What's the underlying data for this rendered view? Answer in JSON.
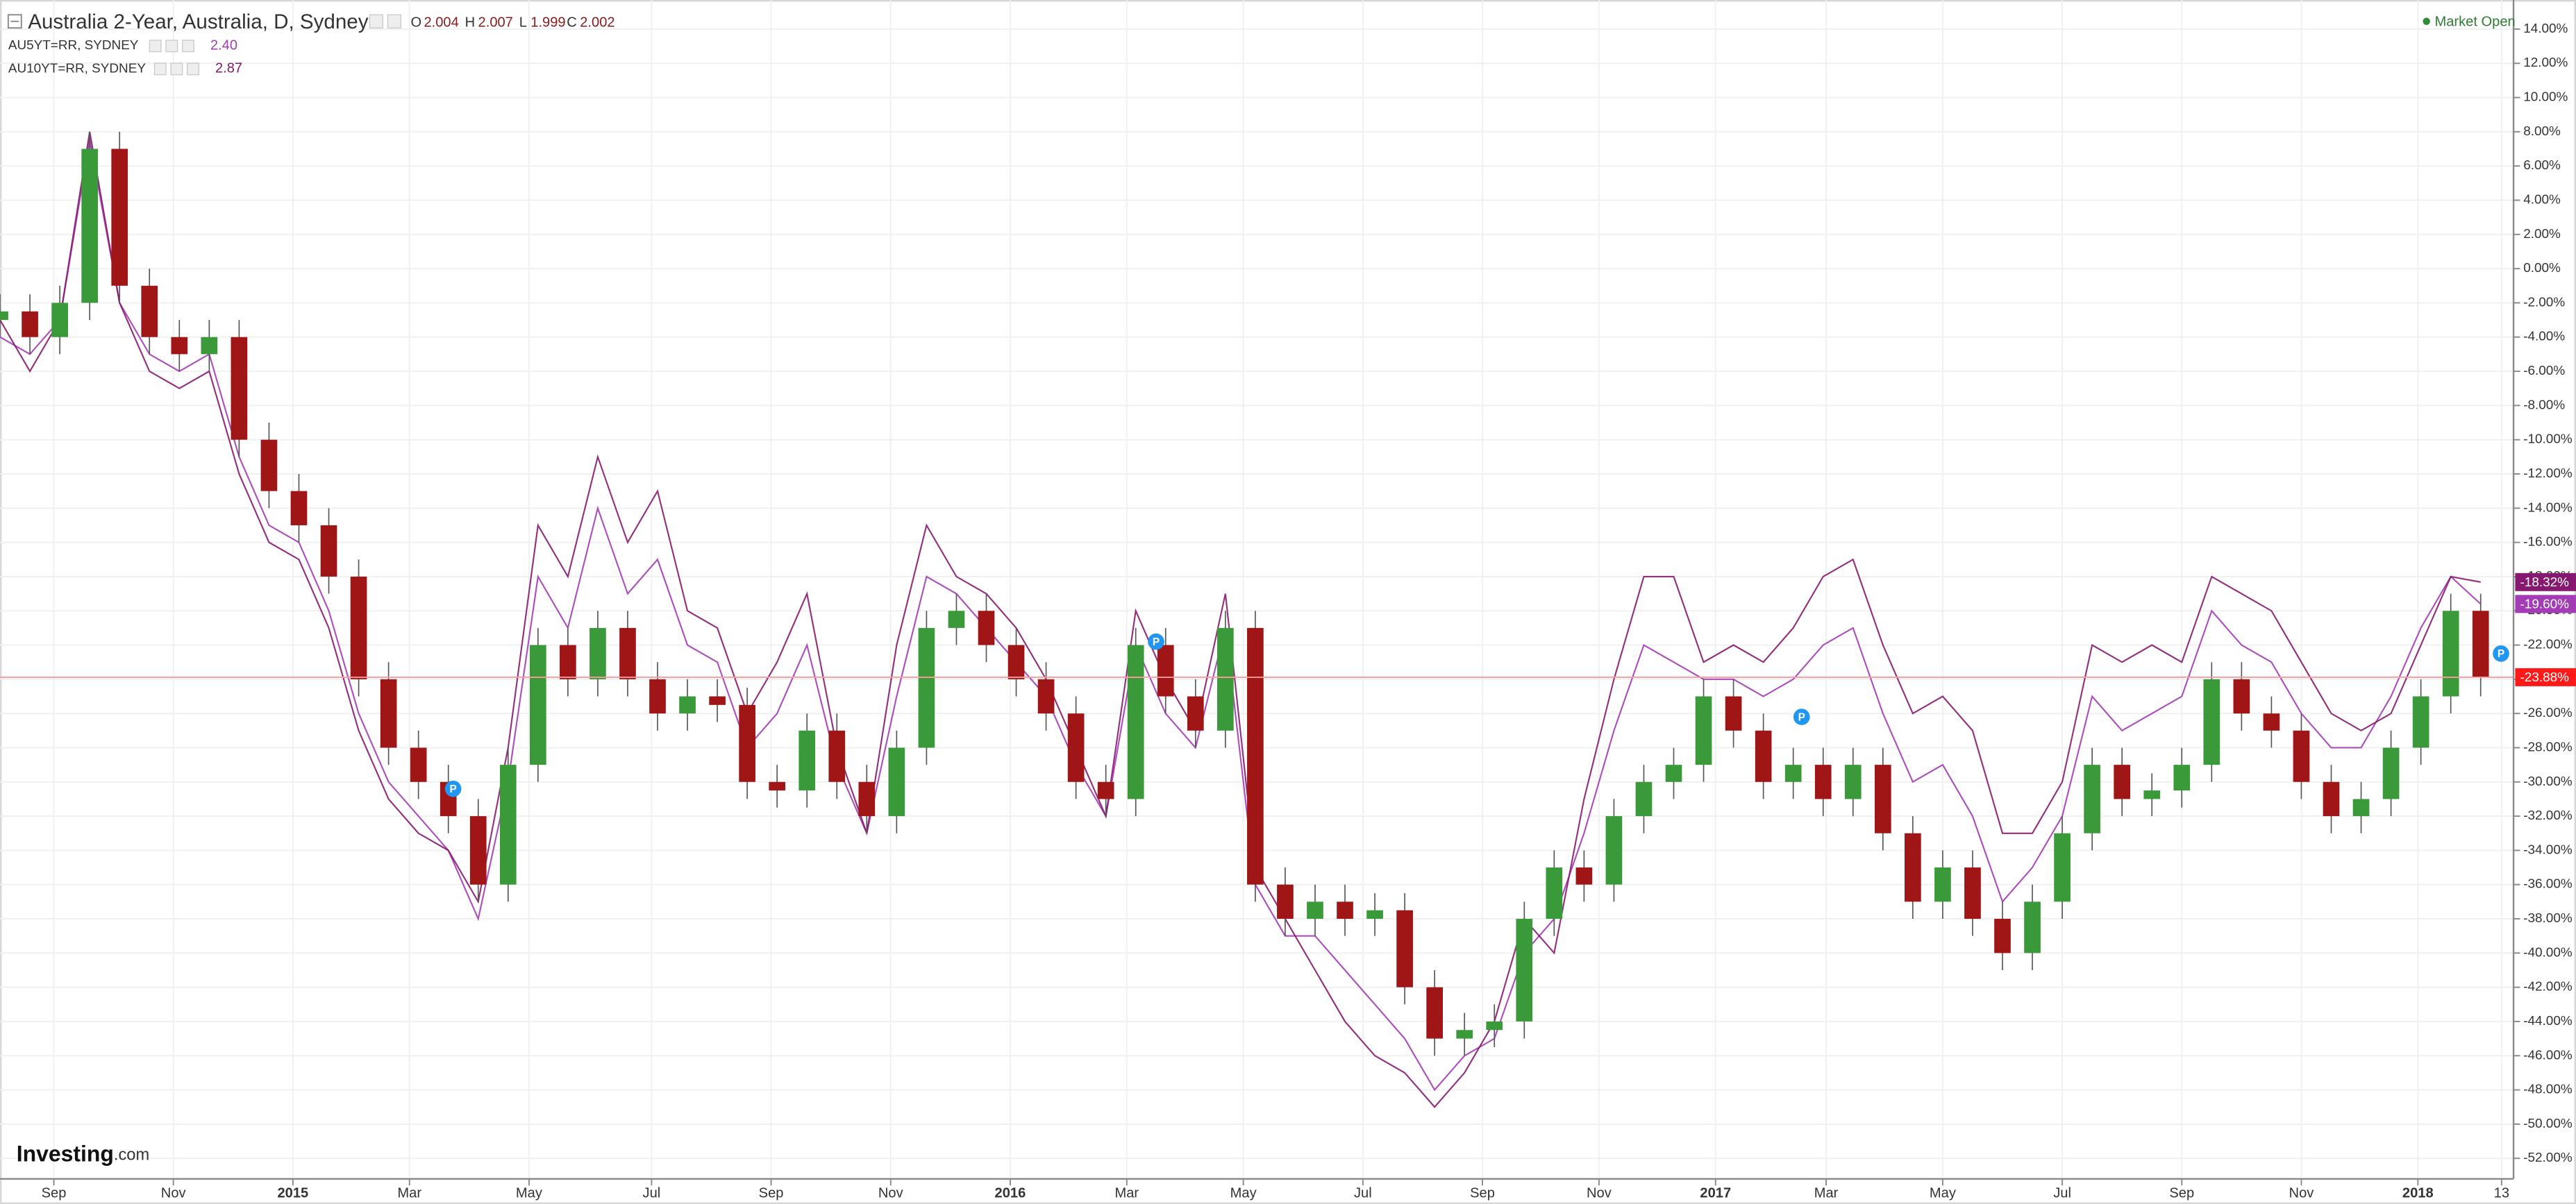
{
  "chart_data": {
    "type": "candlestick",
    "title": "Australia 2-Year, Australia, D, Sydney",
    "ohlc_header": [
      [
        "O",
        "2.004"
      ],
      [
        "H",
        "2.007"
      ],
      [
        "L",
        "1.999"
      ],
      [
        "C",
        "2.002"
      ]
    ],
    "status": "Market Open",
    "logo": {
      "name": "Investing",
      "suffix": ".com"
    },
    "up_color": "#3a9a3a",
    "down_color": "#a01616",
    "last_line_color": "#ff9a9a",
    "last_label": "-23.88%",
    "last_label_color": "#ff1a1a",
    "grid": true,
    "xlim": [
      0,
      42.05
    ],
    "ylim": [
      -53.2,
      15.7
    ],
    "xticks": [
      {
        "value": 0.9,
        "label": "Sep"
      },
      {
        "value": 2.9,
        "label": "Nov"
      },
      {
        "value": 4.9,
        "label": "2015"
      },
      {
        "value": 6.85,
        "label": "Mar"
      },
      {
        "value": 8.85,
        "label": "May"
      },
      {
        "value": 10.9,
        "label": "Jul"
      },
      {
        "value": 12.9,
        "label": "Sep"
      },
      {
        "value": 14.9,
        "label": "Nov"
      },
      {
        "value": 16.9,
        "label": "2016"
      },
      {
        "value": 18.85,
        "label": "Mar"
      },
      {
        "value": 20.8,
        "label": "May"
      },
      {
        "value": 22.8,
        "label": "Jul"
      },
      {
        "value": 24.8,
        "label": "Sep"
      },
      {
        "value": 26.75,
        "label": "Nov"
      },
      {
        "value": 28.7,
        "label": "2017"
      },
      {
        "value": 30.55,
        "label": "Mar"
      },
      {
        "value": 32.5,
        "label": "May"
      },
      {
        "value": 34.5,
        "label": "Jul"
      },
      {
        "value": 36.5,
        "label": "Sep"
      },
      {
        "value": 38.5,
        "label": "Nov"
      },
      {
        "value": 40.45,
        "label": "2018"
      },
      {
        "value": 41.85,
        "label": "13"
      }
    ],
    "yticks": [
      {
        "value": 14,
        "label": "14.00%"
      },
      {
        "value": 12,
        "label": "12.00%"
      },
      {
        "value": 10,
        "label": "10.00%"
      },
      {
        "value": 8,
        "label": "8.00%"
      },
      {
        "value": 6,
        "label": "6.00%"
      },
      {
        "value": 4,
        "label": "4.00%"
      },
      {
        "value": 2,
        "label": "2.00%"
      },
      {
        "value": 0,
        "label": "0.00%"
      },
      {
        "value": -2,
        "label": "-2.00%"
      },
      {
        "value": -4,
        "label": "-4.00%"
      },
      {
        "value": -6,
        "label": "-6.00%"
      },
      {
        "value": -8,
        "label": "-8.00%"
      },
      {
        "value": -10,
        "label": "-10.00%"
      },
      {
        "value": -12,
        "label": "-12.00%"
      },
      {
        "value": -14,
        "label": "-14.00%"
      },
      {
        "value": -16,
        "label": "-16.00%"
      },
      {
        "value": -18,
        "label": "-18.00%"
      },
      {
        "value": -20,
        "label": "-20.00%"
      },
      {
        "value": -22,
        "label": "-22.00%"
      },
      {
        "value": -24,
        "label": "-24.00%"
      },
      {
        "value": -26,
        "label": "-26.00%"
      },
      {
        "value": -28,
        "label": "-28.00%"
      },
      {
        "value": -30,
        "label": "-30.00%"
      },
      {
        "value": -32,
        "label": "-32.00%"
      },
      {
        "value": -34,
        "label": "-34.00%"
      },
      {
        "value": -36,
        "label": "-36.00%"
      },
      {
        "value": -38,
        "label": "-38.00%"
      },
      {
        "value": -40,
        "label": "-40.00%"
      },
      {
        "value": -42,
        "label": "-42.00%"
      },
      {
        "value": -44,
        "label": "-44.00%"
      },
      {
        "value": -46,
        "label": "-46.00%"
      },
      {
        "value": -48,
        "label": "-48.00%"
      },
      {
        "value": -50,
        "label": "-50.00%"
      },
      {
        "value": -52,
        "label": "-52.00%"
      }
    ],
    "x": [
      0,
      0.5,
      1,
      1.5,
      2,
      2.5,
      3,
      3.5,
      4,
      4.5,
      5,
      5.5,
      6,
      6.5,
      7,
      7.5,
      8,
      8.5,
      9,
      9.5,
      10,
      10.5,
      11,
      11.5,
      12,
      12.5,
      13,
      13.5,
      14,
      14.5,
      15,
      15.5,
      16,
      16.5,
      17,
      17.5,
      18,
      18.5,
      19,
      19.5,
      20,
      20.5,
      21,
      21.5,
      22,
      22.5,
      23,
      23.5,
      24,
      24.5,
      25,
      25.5,
      26,
      26.5,
      27,
      27.5,
      28,
      28.5,
      29,
      29.5,
      30,
      30.5,
      31,
      31.5,
      32,
      32.5,
      33,
      33.5,
      34,
      34.5,
      35,
      35.5,
      36,
      36.5,
      37,
      37.5,
      38,
      38.5,
      39,
      39.5,
      40,
      40.5,
      41,
      41.5
    ],
    "candles": [
      [
        -3,
        -1.5,
        -4,
        -2.5
      ],
      [
        -2.5,
        -1.5,
        -5,
        -4
      ],
      [
        -4,
        -1,
        -5,
        -2
      ],
      [
        -2,
        8,
        -3,
        7
      ],
      [
        7,
        8,
        -2,
        -1
      ],
      [
        -1,
        0,
        -5,
        -4
      ],
      [
        -4,
        -3,
        -6,
        -5
      ],
      [
        -5,
        -3,
        -6,
        -4
      ],
      [
        -4,
        -3,
        -11,
        -10
      ],
      [
        -10,
        -9,
        -14,
        -13
      ],
      [
        -13,
        -12,
        -16,
        -15
      ],
      [
        -15,
        -14,
        -19,
        -18
      ],
      [
        -18,
        -17,
        -25,
        -24
      ],
      [
        -24,
        -23,
        -29,
        -28
      ],
      [
        -28,
        -27,
        -31,
        -30
      ],
      [
        -30,
        -29,
        -33,
        -32
      ],
      [
        -32,
        -31,
        -37,
        -36
      ],
      [
        -36,
        -28,
        -37,
        -29
      ],
      [
        -29,
        -21,
        -30,
        -22
      ],
      [
        -22,
        -21,
        -25,
        -24
      ],
      [
        -24,
        -20,
        -25,
        -21
      ],
      [
        -21,
        -20,
        -25,
        -24
      ],
      [
        -24,
        -23,
        -27,
        -26
      ],
      [
        -26,
        -24,
        -27,
        -25
      ],
      [
        -25,
        -24,
        -26.5,
        -25.5
      ],
      [
        -25.5,
        -24.5,
        -31,
        -30
      ],
      [
        -30,
        -29,
        -31.5,
        -30.5
      ],
      [
        -30.5,
        -26,
        -31.5,
        -27
      ],
      [
        -27,
        -26,
        -31,
        -30
      ],
      [
        -30,
        -29,
        -33,
        -32
      ],
      [
        -32,
        -27,
        -33,
        -28
      ],
      [
        -28,
        -20,
        -29,
        -21
      ],
      [
        -21,
        -19,
        -22,
        -20
      ],
      [
        -20,
        -19,
        -23,
        -22
      ],
      [
        -22,
        -21,
        -25,
        -24
      ],
      [
        -24,
        -23,
        -27,
        -26
      ],
      [
        -26,
        -25,
        -31,
        -30
      ],
      [
        -30,
        -29,
        -32,
        -31
      ],
      [
        -31,
        -21,
        -32,
        -22
      ],
      [
        -22,
        -21,
        -26,
        -25
      ],
      [
        -25,
        -24,
        -28,
        -27
      ],
      [
        -27,
        -20,
        -28,
        -21
      ],
      [
        -21,
        -20,
        -37,
        -36
      ],
      [
        -36,
        -35,
        -39,
        -38
      ],
      [
        -38,
        -36,
        -39,
        -37
      ],
      [
        -37,
        -36,
        -39,
        -38
      ],
      [
        -38,
        -36.5,
        -39,
        -37.5
      ],
      [
        -37.5,
        -36.5,
        -43,
        -42
      ],
      [
        -42,
        -41,
        -46,
        -45
      ],
      [
        -45,
        -43.5,
        -46,
        -44.5
      ],
      [
        -44.5,
        -43,
        -45.5,
        -44
      ],
      [
        -44,
        -37,
        -45,
        -38
      ],
      [
        -38,
        -34,
        -39,
        -35
      ],
      [
        -35,
        -34,
        -37,
        -36
      ],
      [
        -36,
        -31,
        -37,
        -32
      ],
      [
        -32,
        -29,
        -33,
        -30
      ],
      [
        -30,
        -28,
        -31,
        -29
      ],
      [
        -29,
        -24,
        -30,
        -25
      ],
      [
        -25,
        -24,
        -28,
        -27
      ],
      [
        -27,
        -26,
        -31,
        -30
      ],
      [
        -30,
        -28,
        -31,
        -29
      ],
      [
        -29,
        -28,
        -32,
        -31
      ],
      [
        -31,
        -28,
        -32,
        -29
      ],
      [
        -29,
        -28,
        -34,
        -33
      ],
      [
        -33,
        -32,
        -38,
        -37
      ],
      [
        -37,
        -34,
        -38,
        -35
      ],
      [
        -35,
        -34,
        -39,
        -38
      ],
      [
        -38,
        -37,
        -41,
        -40
      ],
      [
        -40,
        -36,
        -41,
        -37
      ],
      [
        -37,
        -32,
        -38,
        -33
      ],
      [
        -33,
        -28,
        -34,
        -29
      ],
      [
        -29,
        -28,
        -32,
        -31
      ],
      [
        -31,
        -29.5,
        -32,
        -30.5
      ],
      [
        -30.5,
        -28,
        -31.5,
        -29
      ],
      [
        -29,
        -23,
        -30,
        -24
      ],
      [
        -24,
        -23,
        -27,
        -26
      ],
      [
        -26,
        -25,
        -28,
        -27
      ],
      [
        -27,
        -26,
        -31,
        -30
      ],
      [
        -30,
        -29,
        -33,
        -32
      ],
      [
        -32,
        -30,
        -33,
        -31
      ],
      [
        -31,
        -27,
        -32,
        -28
      ],
      [
        -28,
        -24,
        -29,
        -25
      ],
      [
        -25,
        -19,
        -26,
        -20
      ],
      [
        -20,
        -19,
        -25,
        -23.88
      ]
    ],
    "series": [
      {
        "name": "AU5YT=RR, SYDNEY",
        "quote": "2.40",
        "color": "#a33cb5",
        "last_label": "-19.60%",
        "values": [
          -4,
          -5,
          -3,
          7.5,
          -2,
          -5,
          -6,
          -5,
          -11,
          -15,
          -16,
          -20,
          -26,
          -30,
          -32,
          -34,
          -38,
          -30,
          -18,
          -21,
          -14,
          -19,
          -17,
          -22,
          -23,
          -28,
          -26,
          -22,
          -29,
          -33,
          -25,
          -18,
          -19,
          -21,
          -23,
          -25,
          -29,
          -32,
          -22,
          -26,
          -28,
          -21,
          -36,
          -39,
          -39,
          -41,
          -43,
          -45,
          -48,
          -46,
          -45,
          -40,
          -38,
          -33,
          -27,
          -22,
          -23,
          -24,
          -24,
          -25,
          -24,
          -22,
          -21,
          -26,
          -30,
          -29,
          -32,
          -37,
          -35,
          -32,
          -25,
          -27,
          -26,
          -25,
          -20,
          -22,
          -23,
          -26,
          -28,
          -28,
          -25,
          -21,
          -18,
          -19.6
        ]
      },
      {
        "name": "AU10YT=RR, SYDNEY",
        "quote": "2.87",
        "color": "#86196f",
        "last_label": "-18.32%",
        "values": [
          -3,
          -6,
          -3,
          8,
          -2,
          -6,
          -7,
          -6,
          -12,
          -16,
          -17,
          -21,
          -27,
          -31,
          -33,
          -34,
          -37,
          -28,
          -15,
          -18,
          -11,
          -16,
          -13,
          -20,
          -21,
          -26,
          -23,
          -19,
          -28,
          -33,
          -22,
          -15,
          -18,
          -19,
          -21,
          -24,
          -28,
          -32,
          -20,
          -24,
          -27,
          -19,
          -35,
          -38,
          -41,
          -44,
          -46,
          -47,
          -49,
          -47,
          -44,
          -38,
          -40,
          -31,
          -24,
          -18,
          -18,
          -23,
          -22,
          -23,
          -21,
          -18,
          -17,
          -22,
          -26,
          -25,
          -27,
          -33,
          -33,
          -30,
          -22,
          -23,
          -22,
          -23,
          -18,
          -19,
          -20,
          -23,
          -26,
          -27,
          -26,
          -22,
          -18,
          -18.32
        ]
      }
    ],
    "events": [
      {
        "x": 7.58,
        "y": -30.4,
        "label": "P"
      },
      {
        "x": 19.34,
        "y": -21.8,
        "label": "P"
      },
      {
        "x": 30.14,
        "y": -26.2,
        "label": "P"
      },
      {
        "x": 41.84,
        "y": -22.5,
        "label": "P"
      }
    ]
  }
}
